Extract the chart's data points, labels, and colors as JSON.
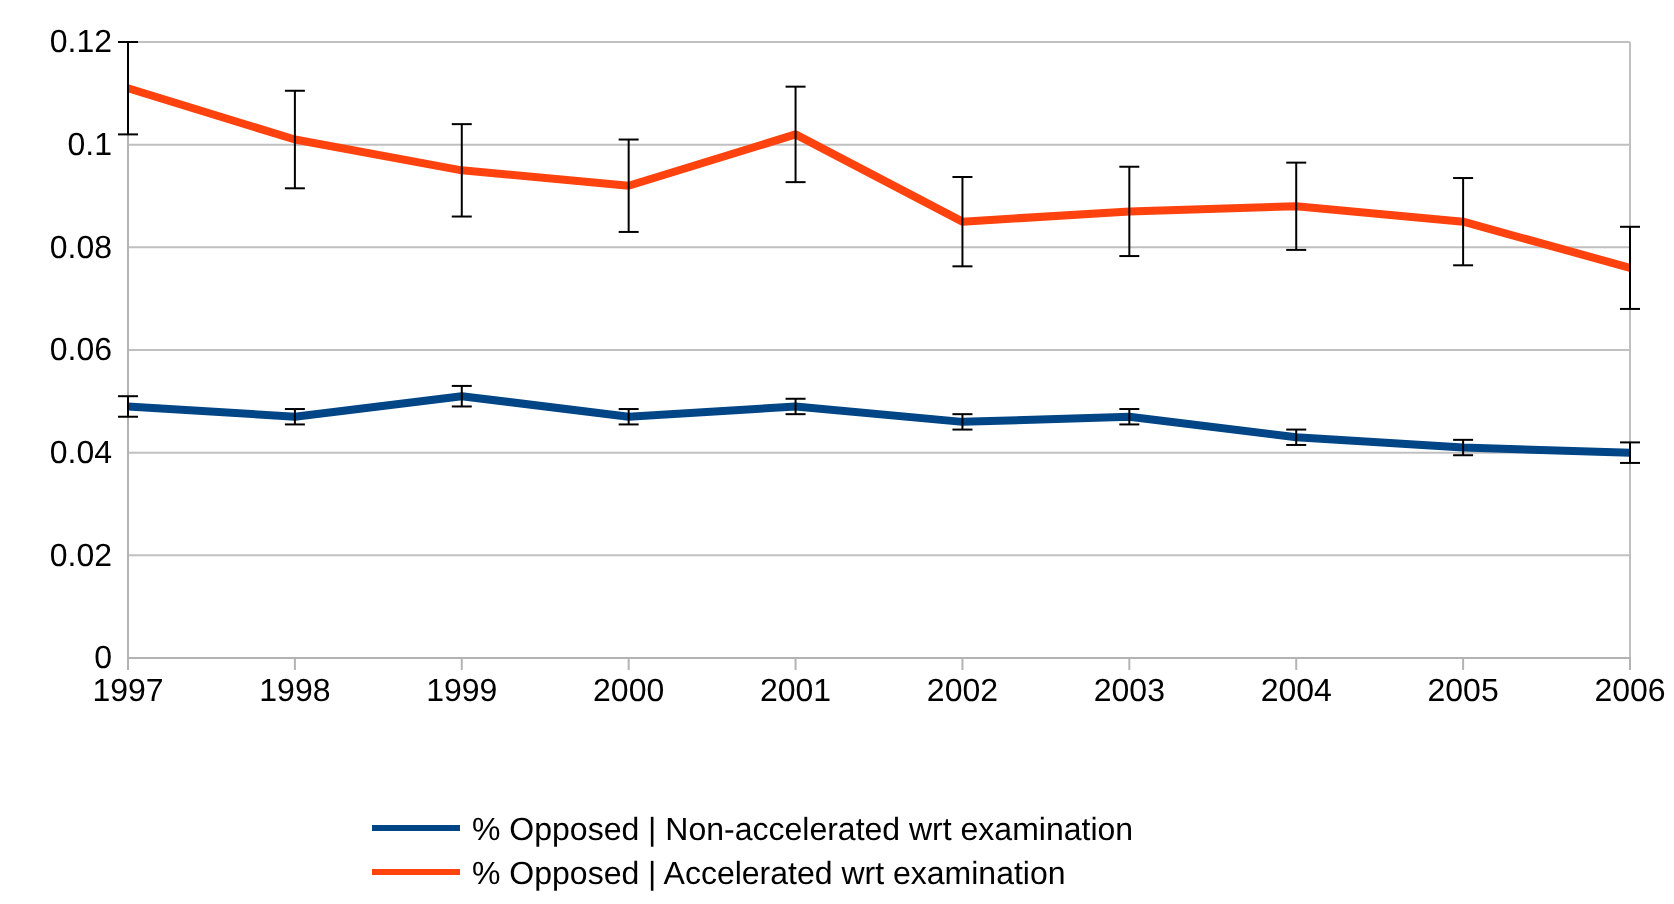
{
  "chart_data": {
    "type": "line",
    "x": [
      1997,
      1998,
      1999,
      2000,
      2001,
      2002,
      2003,
      2004,
      2005,
      2006
    ],
    "series": [
      {
        "name": "% Opposed | Non-accelerated wrt examination",
        "color": "#004586",
        "values": [
          0.049,
          0.047,
          0.051,
          0.047,
          0.049,
          0.046,
          0.047,
          0.043,
          0.041,
          0.04
        ],
        "errors": [
          0.002,
          0.0015,
          0.002,
          0.0015,
          0.0015,
          0.0015,
          0.0015,
          0.0015,
          0.0015,
          0.002
        ]
      },
      {
        "name": "% Opposed | Accelerated wrt examination",
        "color": "#ff420e",
        "values": [
          0.111,
          0.101,
          0.095,
          0.092,
          0.102,
          0.085,
          0.087,
          0.088,
          0.085,
          0.076
        ],
        "errors": [
          [
            0.102,
            0.12
          ],
          0.0095,
          0.009,
          0.009,
          0.0093,
          0.0087,
          0.0087,
          0.0085,
          0.0085,
          0.008
        ]
      }
    ],
    "xlim": [
      1997,
      2006
    ],
    "xticks": [
      1997,
      1998,
      1999,
      2000,
      2001,
      2002,
      2003,
      2004,
      2005,
      2006
    ],
    "ylim": [
      0,
      0.12
    ],
    "yticks": [
      0,
      0.02,
      0.04,
      0.06,
      0.08,
      0.1,
      0.12
    ],
    "grid": "y",
    "legend": "bottom",
    "marker": "none",
    "line_style": "solid"
  }
}
